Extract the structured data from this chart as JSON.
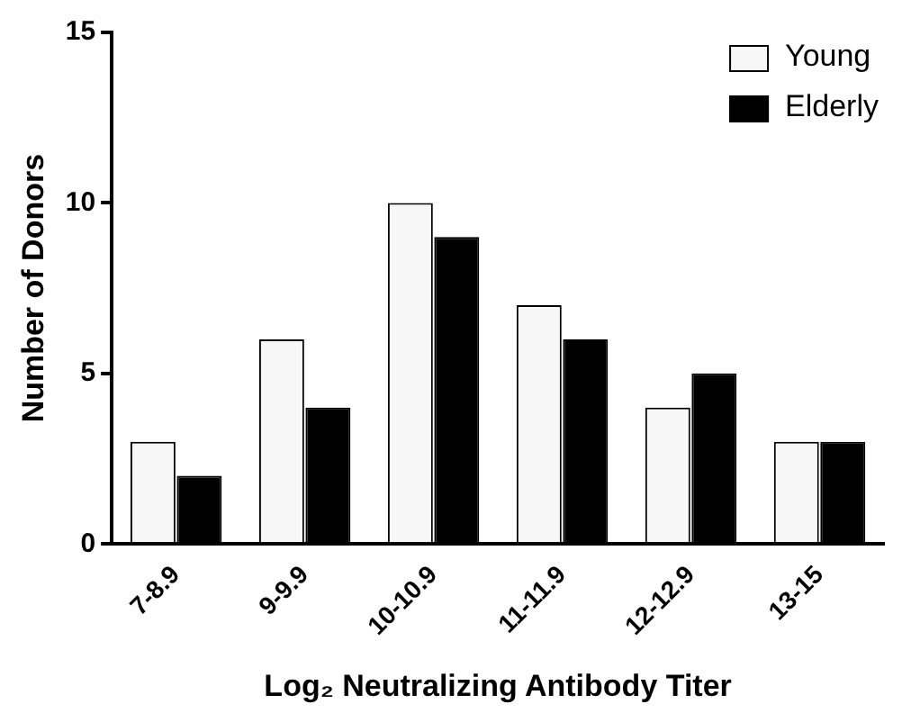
{
  "chart_data": {
    "type": "bar",
    "xlabel": "Log₂ Neutralizing Antibody Titer",
    "ylabel": "Number of Donors",
    "categories": [
      "7-8.9",
      "9-9.9",
      "10-10.9",
      "11-11.9",
      "12-12.9",
      "13-15"
    ],
    "series": [
      {
        "name": "Young",
        "color": "#f7f7f7",
        "values": [
          3,
          6,
          10,
          7,
          4,
          3
        ]
      },
      {
        "name": "Elderly",
        "color": "#000000",
        "values": [
          2,
          4,
          9,
          6,
          5,
          3
        ]
      }
    ],
    "ylim": [
      0,
      15
    ],
    "yticks": [
      0,
      5,
      10,
      15
    ],
    "grid": false,
    "legend": "top right"
  }
}
